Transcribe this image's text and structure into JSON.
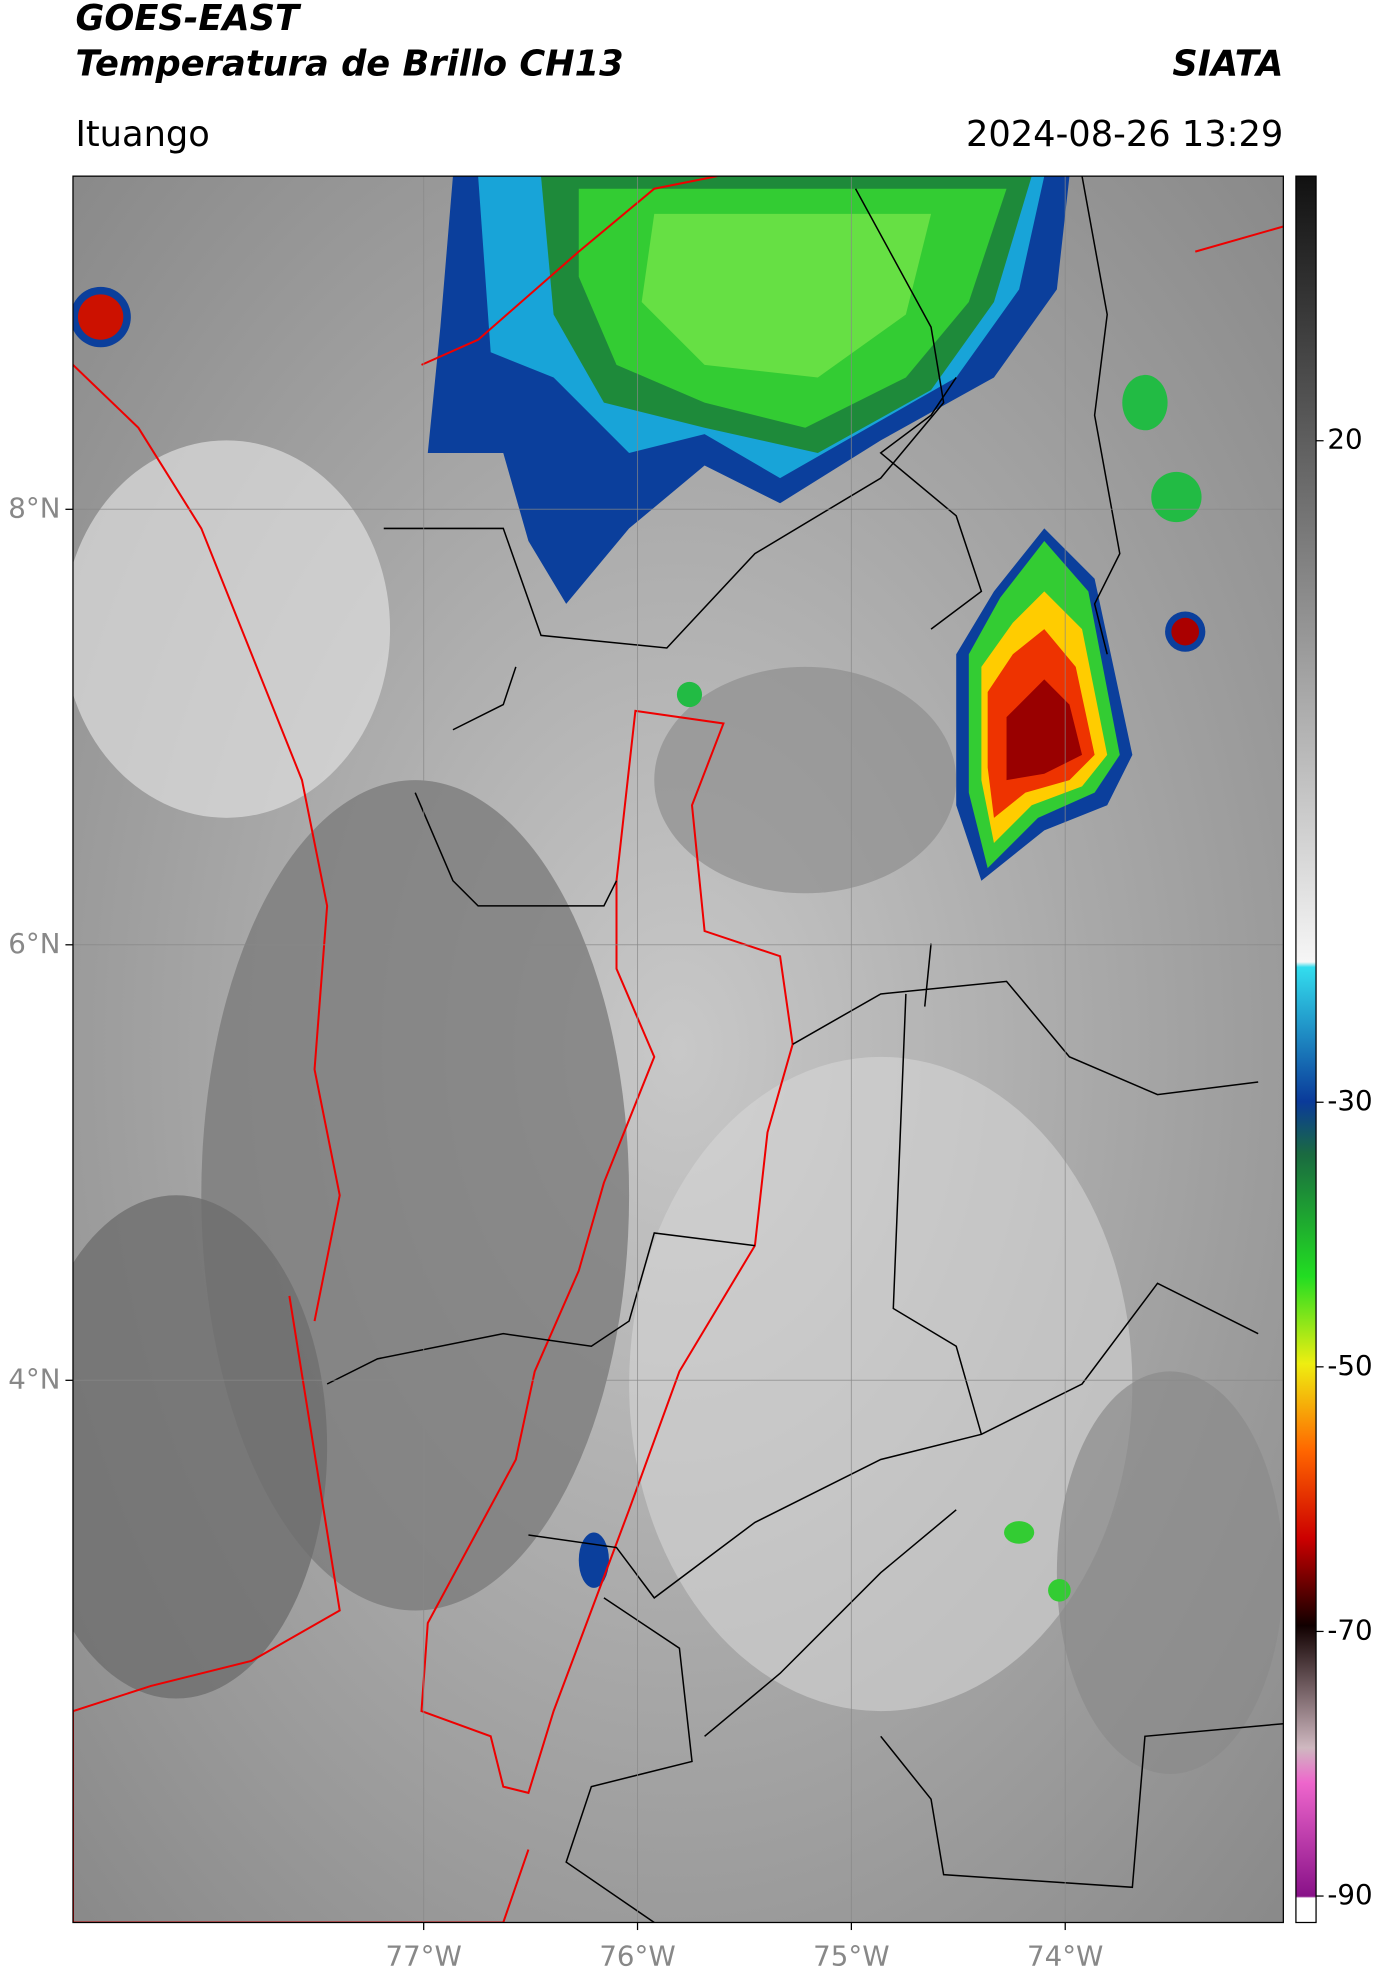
{
  "header": {
    "title": "GOES-EAST",
    "subtitle": "Temperatura de Brillo CH13",
    "brand": "SIATA",
    "location": "Ituango",
    "datetime": "2024-08-26 13:29"
  },
  "map": {
    "xlim": [
      -78.64,
      -72.98
    ],
    "ylim": [
      1.51,
      9.53
    ],
    "xticks": [
      {
        "value": -77,
        "label": "77°W"
      },
      {
        "value": -76,
        "label": "76°W"
      },
      {
        "value": -75,
        "label": "75°W"
      },
      {
        "value": -74,
        "label": "74°W"
      }
    ],
    "yticks": [
      {
        "value": 8,
        "label": "8°N"
      },
      {
        "value": 6,
        "label": "6°N"
      },
      {
        "value": 4,
        "label": "4°N"
      }
    ],
    "grid": true
  },
  "colorbar": {
    "lim": [
      -92,
      40
    ],
    "ticks": [
      20,
      -30,
      -50,
      -70,
      -90
    ]
  }
}
